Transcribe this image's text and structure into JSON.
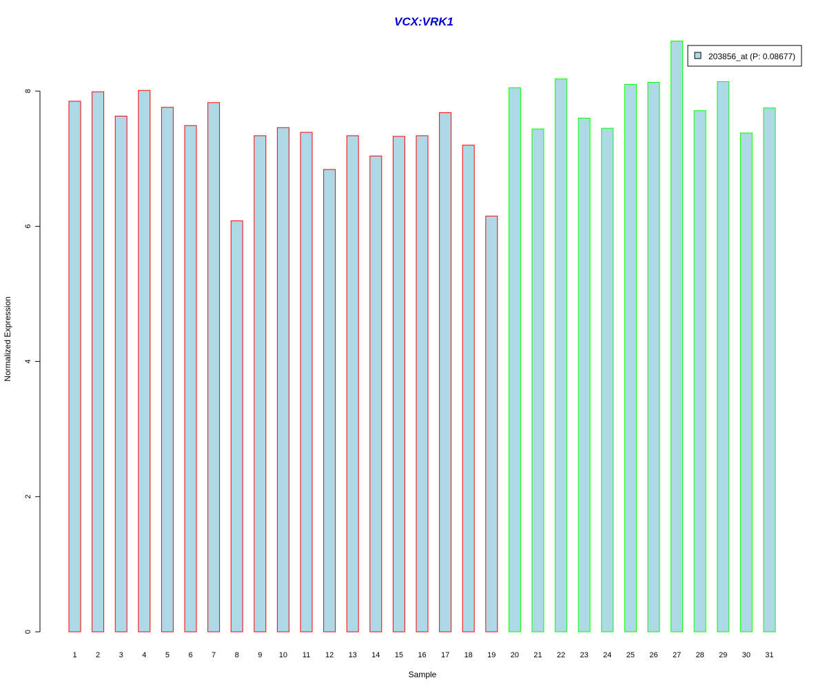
{
  "chart_data": {
    "type": "bar",
    "title": "VCX:VRK1",
    "xlabel": "Sample",
    "ylabel": "Normalized Expression",
    "categories": [
      "1",
      "2",
      "3",
      "4",
      "5",
      "6",
      "7",
      "8",
      "9",
      "10",
      "11",
      "12",
      "13",
      "14",
      "15",
      "16",
      "17",
      "18",
      "19",
      "20",
      "21",
      "22",
      "23",
      "24",
      "25",
      "26",
      "27",
      "28",
      "29",
      "30",
      "31"
    ],
    "series": [
      {
        "name": "203856_at (P: 0.08677)",
        "values": [
          7.85,
          7.99,
          7.63,
          8.01,
          7.76,
          7.49,
          7.83,
          6.08,
          7.34,
          7.46,
          7.39,
          6.84,
          7.34,
          7.04,
          7.33,
          7.34,
          7.68,
          7.2,
          6.15,
          8.05,
          7.44,
          8.18,
          7.6,
          7.45,
          8.1,
          8.13,
          8.74,
          7.71,
          8.14,
          7.38,
          7.75
        ]
      }
    ],
    "group_borders": [
      "#ff0000",
      "#ff0000",
      "#ff0000",
      "#ff0000",
      "#ff0000",
      "#ff0000",
      "#ff0000",
      "#ff0000",
      "#ff0000",
      "#ff0000",
      "#ff0000",
      "#ff0000",
      "#ff0000",
      "#ff0000",
      "#ff0000",
      "#ff0000",
      "#ff0000",
      "#ff0000",
      "#ff0000",
      "#00ff00",
      "#00ff00",
      "#00ff00",
      "#00ff00",
      "#00ff00",
      "#00ff00",
      "#00ff00",
      "#00ff00",
      "#00ff00",
      "#00ff00",
      "#00ff00",
      "#00ff00"
    ],
    "yticks": [
      0,
      2,
      4,
      6,
      8
    ],
    "ylim": [
      0,
      8.9
    ],
    "grid": false,
    "legend": "top-right",
    "colors": {
      "bar_fill": "#add8e6",
      "title": "#0000cd",
      "axis": "#000000"
    }
  }
}
